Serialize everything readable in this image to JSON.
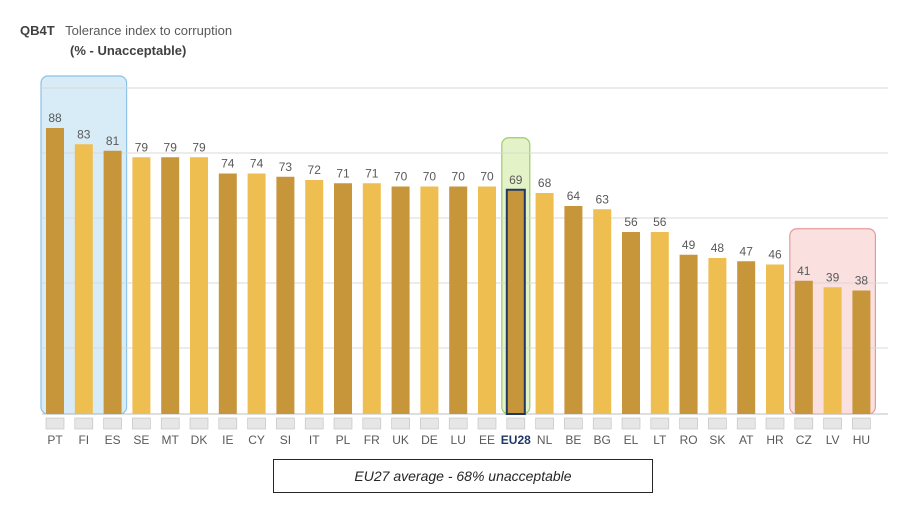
{
  "header": {
    "code": "QB4T",
    "title": "Tolerance index to corruption",
    "subtitle": "(% - Unacceptable)"
  },
  "note": "EU27 average -  68% unacceptable",
  "colors": {
    "bar_dark": "#C8963A",
    "bar_light": "#EEBE50",
    "eu_border": "#1F3864",
    "highlight_top_fill": "#D8ECF8",
    "highlight_top_stroke": "#8EC2E6",
    "highlight_eu_fill": "#E4F2C8",
    "highlight_eu_stroke": "#9CCB6A",
    "highlight_bottom_fill": "#FBE0E0",
    "highlight_bottom_stroke": "#E89A9A"
  },
  "chart_data": {
    "type": "bar",
    "title": "Tolerance index to corruption",
    "subtitle": "(% - Unacceptable)",
    "categories": [
      "PT",
      "FI",
      "ES",
      "SE",
      "MT",
      "DK",
      "IE",
      "CY",
      "SI",
      "IT",
      "PL",
      "FR",
      "UK",
      "DE",
      "LU",
      "EE",
      "EU28",
      "NL",
      "BE",
      "BG",
      "EL",
      "LT",
      "RO",
      "SK",
      "AT",
      "HR",
      "CZ",
      "LV",
      "HU"
    ],
    "values": [
      88,
      83,
      81,
      79,
      79,
      79,
      74,
      74,
      73,
      72,
      71,
      71,
      70,
      70,
      70,
      70,
      69,
      68,
      64,
      63,
      56,
      56,
      49,
      48,
      47,
      46,
      41,
      39,
      38
    ],
    "ylim": [
      0,
      100
    ],
    "grid": true,
    "highlight_groups": {
      "top": [
        "PT",
        "FI",
        "ES"
      ],
      "average": [
        "EU28"
      ],
      "bottom": [
        "CZ",
        "LV",
        "HU"
      ]
    }
  }
}
